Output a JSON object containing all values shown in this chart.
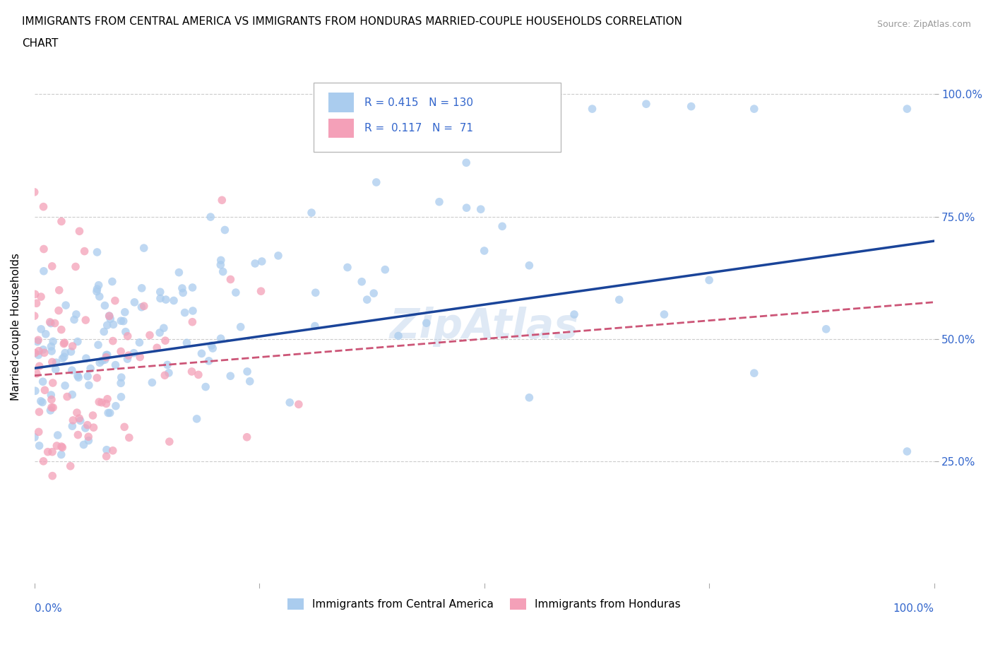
{
  "title_line1": "IMMIGRANTS FROM CENTRAL AMERICA VS IMMIGRANTS FROM HONDURAS MARRIED-COUPLE HOUSEHOLDS CORRELATION",
  "title_line2": "CHART",
  "source_text": "Source: ZipAtlas.com",
  "watermark": "ZipAtlas",
  "ylabel": "Married-couple Households",
  "xlim": [
    0,
    1
  ],
  "ylim": [
    0,
    1.05
  ],
  "ytick_positions": [
    0.25,
    0.5,
    0.75,
    1.0
  ],
  "grid_color": "#cccccc",
  "background_color": "#ffffff",
  "series1_color": "#aaccee",
  "series1_line_color": "#1a4499",
  "series2_color": "#f4a0b8",
  "series2_line_color": "#cc5577",
  "R1": 0.415,
  "N1": 130,
  "R2": 0.117,
  "N2": 71,
  "legend1_label": "Immigrants from Central America",
  "legend2_label": "Immigrants from Honduras",
  "marker_size": 70,
  "alpha": 0.75,
  "title_fontsize": 11,
  "axis_tick_color": "#3366cc",
  "legend_R_color": "#3366cc",
  "line1_x0": 0.0,
  "line1_y0": 0.44,
  "line1_x1": 1.0,
  "line1_y1": 0.7,
  "line2_x0": 0.0,
  "line2_y0": 0.425,
  "line2_x1": 1.0,
  "line2_y1": 0.575
}
